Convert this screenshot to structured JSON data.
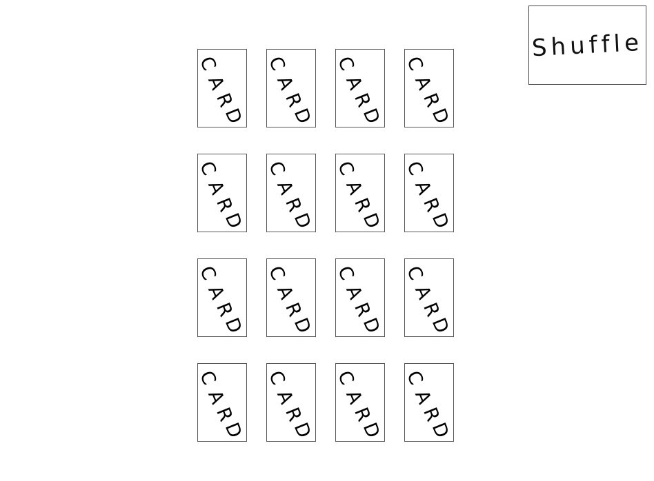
{
  "shuffle_button": {
    "label": "Shuffle"
  },
  "cards": [
    {
      "letters": [
        "C",
        "A",
        "R",
        "D"
      ]
    },
    {
      "letters": [
        "C",
        "A",
        "R",
        "D"
      ]
    },
    {
      "letters": [
        "C",
        "A",
        "R",
        "D"
      ]
    },
    {
      "letters": [
        "C",
        "A",
        "R",
        "D"
      ]
    },
    {
      "letters": [
        "C",
        "A",
        "R",
        "D"
      ]
    },
    {
      "letters": [
        "C",
        "A",
        "R",
        "D"
      ]
    },
    {
      "letters": [
        "C",
        "A",
        "R",
        "D"
      ]
    },
    {
      "letters": [
        "C",
        "A",
        "R",
        "D"
      ]
    },
    {
      "letters": [
        "C",
        "A",
        "R",
        "D"
      ]
    },
    {
      "letters": [
        "C",
        "A",
        "R",
        "D"
      ]
    },
    {
      "letters": [
        "C",
        "A",
        "R",
        "D"
      ]
    },
    {
      "letters": [
        "C",
        "A",
        "R",
        "D"
      ]
    },
    {
      "letters": [
        "C",
        "A",
        "R",
        "D"
      ]
    },
    {
      "letters": [
        "C",
        "A",
        "R",
        "D"
      ]
    },
    {
      "letters": [
        "C",
        "A",
        "R",
        "D"
      ]
    },
    {
      "letters": [
        "C",
        "A",
        "R",
        "D"
      ]
    }
  ]
}
